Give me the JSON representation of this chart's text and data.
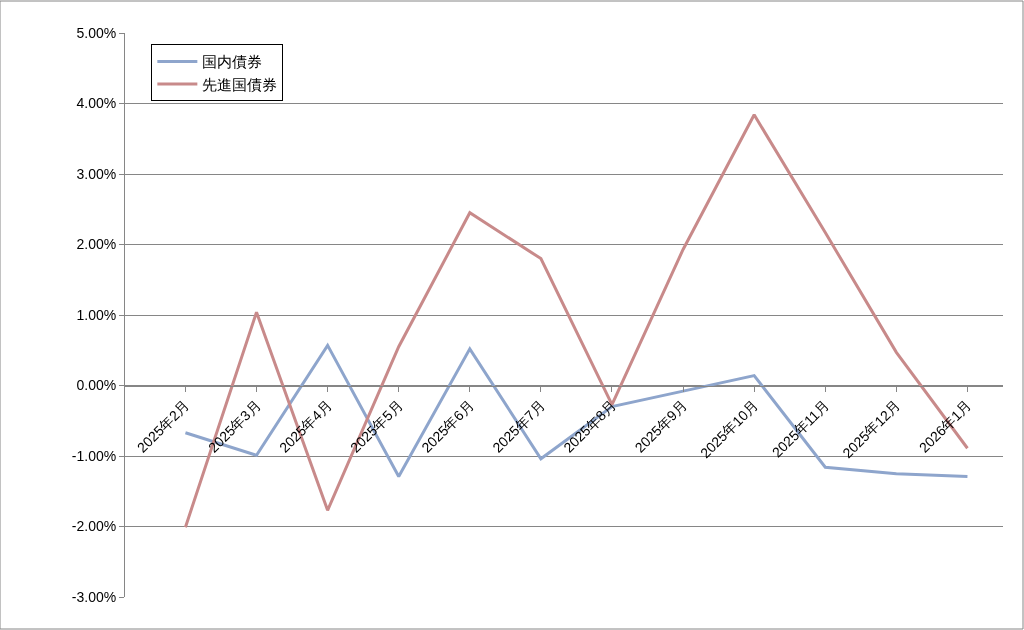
{
  "chart_data": {
    "type": "line",
    "categories": [
      "2025年2月",
      "2025年3月",
      "2025年4月",
      "2025年5月",
      "2025年6月",
      "2025年7月",
      "2025年8月",
      "2025年9月",
      "2025年10月",
      "2025年11月",
      "2025年12月",
      "2026年1月"
    ],
    "series": [
      {
        "name": "国内債券",
        "color": "#8ea5cc",
        "values": [
          -0.67,
          -0.99,
          0.57,
          -1.29,
          0.52,
          -1.04,
          -0.3,
          -0.08,
          0.14,
          -1.16,
          -1.25,
          -1.29
        ]
      },
      {
        "name": "先進国債券",
        "color": "#c88a8a",
        "values": [
          -2.01,
          1.04,
          -1.77,
          0.55,
          2.45,
          1.8,
          -0.27,
          1.93,
          3.84,
          2.17,
          0.47,
          -0.89
        ]
      }
    ],
    "ylim": [
      -3,
      5
    ],
    "yticks": [
      {
        "value": -3,
        "label": "-3.00%"
      },
      {
        "value": -2,
        "label": "-2.00%"
      },
      {
        "value": -1,
        "label": "-1.00%"
      },
      {
        "value": 0,
        "label": "0.00%"
      },
      {
        "value": 1,
        "label": "1.00%"
      },
      {
        "value": 2,
        "label": "2.00%"
      },
      {
        "value": 3,
        "label": "3.00%"
      },
      {
        "value": 4,
        "label": "4.00%"
      },
      {
        "value": 5,
        "label": "5.00%"
      }
    ],
    "grid": "y",
    "legend": "top left",
    "marker": "none",
    "line_style": "solid"
  }
}
